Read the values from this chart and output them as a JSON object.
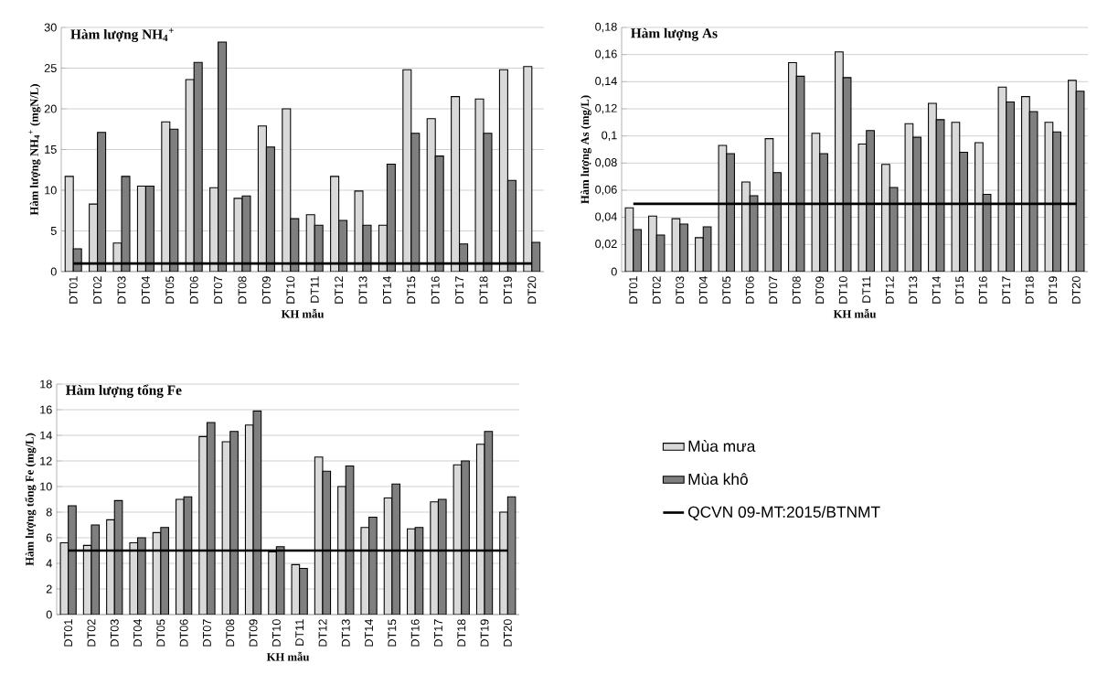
{
  "chart_data": [
    {
      "type": "bar",
      "title": "Hàm lượng NH$_{4}$$^{+}$",
      "xlabel": "KH mẫu",
      "ylabel": "Hàm lượng NH$_{4}$$^{+}$ (mgN/L)",
      "categories": [
        "DT01",
        "DT02",
        "DT03",
        "DT04",
        "DT05",
        "DT06",
        "DT07",
        "DT08",
        "DT09",
        "DT10",
        "DT11",
        "DT12",
        "DT13",
        "DT14",
        "DT15",
        "DT16",
        "DT17",
        "DT18",
        "DT19",
        "DT20"
      ],
      "series": [
        {
          "color": "#d9d9d9",
          "values": [
            11.7,
            8.3,
            3.5,
            10.5,
            18.4,
            23.6,
            10.3,
            9.0,
            17.9,
            20.0,
            7.0,
            11.7,
            9.9,
            5.7,
            24.8,
            18.8,
            21.5,
            21.2,
            24.8,
            25.2
          ]
        },
        {
          "color": "#7f7f7f",
          "values": [
            2.8,
            17.1,
            11.7,
            10.5,
            17.5,
            25.7,
            28.2,
            9.3,
            15.3,
            6.5,
            5.7,
            6.3,
            5.7,
            13.2,
            17.0,
            14.2,
            3.4,
            17.0,
            11.2,
            3.6
          ]
        },
        {
          "type": "line",
          "color": "#000000",
          "values": [
            1,
            1,
            1,
            1,
            1,
            1,
            1,
            1,
            1,
            1,
            1,
            1,
            1,
            1,
            1,
            1,
            1,
            1,
            1,
            1
          ]
        }
      ],
      "ylim": [
        0,
        30
      ],
      "yticks": [
        0,
        5,
        10,
        15,
        20,
        25,
        30
      ],
      "grid": "y",
      "marker": "none"
    },
    {
      "type": "bar",
      "title": "Hàm lượng As",
      "xlabel": "KH mẫu",
      "ylabel": "Hàm lượng As (mg/L)",
      "categories": [
        "DT01",
        "DT02",
        "DT03",
        "DT04",
        "DT05",
        "DT06",
        "DT07",
        "DT08",
        "DT09",
        "DT10",
        "DT11",
        "DT12",
        "DT13",
        "DT14",
        "DT15",
        "DT16",
        "DT17",
        "DT18",
        "DT19",
        "DT20"
      ],
      "series": [
        {
          "color": "#d9d9d9",
          "values": [
            0.047,
            0.041,
            0.039,
            0.025,
            0.093,
            0.066,
            0.098,
            0.154,
            0.102,
            0.162,
            0.094,
            0.079,
            0.109,
            0.124,
            0.11,
            0.095,
            0.136,
            0.129,
            0.11,
            0.141
          ]
        },
        {
          "color": "#7f7f7f",
          "values": [
            0.031,
            0.027,
            0.035,
            0.033,
            0.087,
            0.056,
            0.073,
            0.144,
            0.087,
            0.143,
            0.104,
            0.062,
            0.099,
            0.112,
            0.088,
            0.057,
            0.125,
            0.118,
            0.103,
            0.133
          ]
        },
        {
          "type": "line",
          "color": "#000000",
          "values": [
            0.05,
            0.05,
            0.05,
            0.05,
            0.05,
            0.05,
            0.05,
            0.05,
            0.05,
            0.05,
            0.05,
            0.05,
            0.05,
            0.05,
            0.05,
            0.05,
            0.05,
            0.05,
            0.05,
            0.05
          ]
        }
      ],
      "ylim": [
        0,
        0.18
      ],
      "yticks": [
        0,
        {
          "value": 0.02,
          "label": "0,02"
        },
        {
          "value": 0.04,
          "label": "0,04"
        },
        {
          "value": 0.06,
          "label": "0,06"
        },
        {
          "value": 0.08,
          "label": "0,08"
        },
        {
          "value": 0.1,
          "label": "0,1"
        },
        {
          "value": 0.12,
          "label": "0,12"
        },
        {
          "value": 0.14,
          "label": "0,14"
        },
        {
          "value": 0.16,
          "label": "0,16"
        },
        {
          "value": 0.18,
          "label": "0,18"
        }
      ],
      "grid": "y",
      "marker": "none"
    },
    {
      "type": "bar",
      "title": "Hàm lượng tổng Fe",
      "xlabel": "KH mẫu",
      "ylabel": "Hàm lượng tổng Fe (mg/L)",
      "categories": [
        "DT01",
        "DT02",
        "DT03",
        "DT04",
        "DT05",
        "DT06",
        "DT07",
        "DT08",
        "DT09",
        "DT10",
        "DT11",
        "DT12",
        "DT13",
        "DT14",
        "DT15",
        "DT16",
        "DT17",
        "DT18",
        "DT19",
        "DT20"
      ],
      "series": [
        {
          "name": "Mùa mưa",
          "color": "#d9d9d9",
          "values": [
            5.6,
            5.4,
            7.4,
            5.6,
            6.4,
            9.0,
            13.9,
            13.5,
            14.8,
            4.9,
            3.9,
            12.3,
            10.0,
            6.8,
            9.1,
            6.7,
            8.8,
            11.7,
            13.3,
            8.0
          ]
        },
        {
          "name": "Mùa khô",
          "color": "#7f7f7f",
          "values": [
            8.5,
            7.0,
            8.9,
            6.0,
            6.8,
            9.2,
            15.0,
            14.3,
            15.9,
            5.3,
            3.6,
            11.2,
            11.6,
            7.6,
            10.2,
            6.8,
            9.0,
            12.0,
            14.3,
            9.2
          ]
        },
        {
          "type": "line",
          "name": "QCVN 09-MT:2015/BTNMT",
          "color": "#000000",
          "values": [
            5,
            5,
            5,
            5,
            5,
            5,
            5,
            5,
            5,
            5,
            5,
            5,
            5,
            5,
            5,
            5,
            5,
            5,
            5,
            5
          ]
        }
      ],
      "ylim": [
        0,
        18
      ],
      "yticks": [
        0,
        2,
        4,
        6,
        8,
        10,
        12,
        14,
        16,
        18
      ],
      "grid": "y",
      "legend": "right",
      "marker": "none"
    }
  ]
}
